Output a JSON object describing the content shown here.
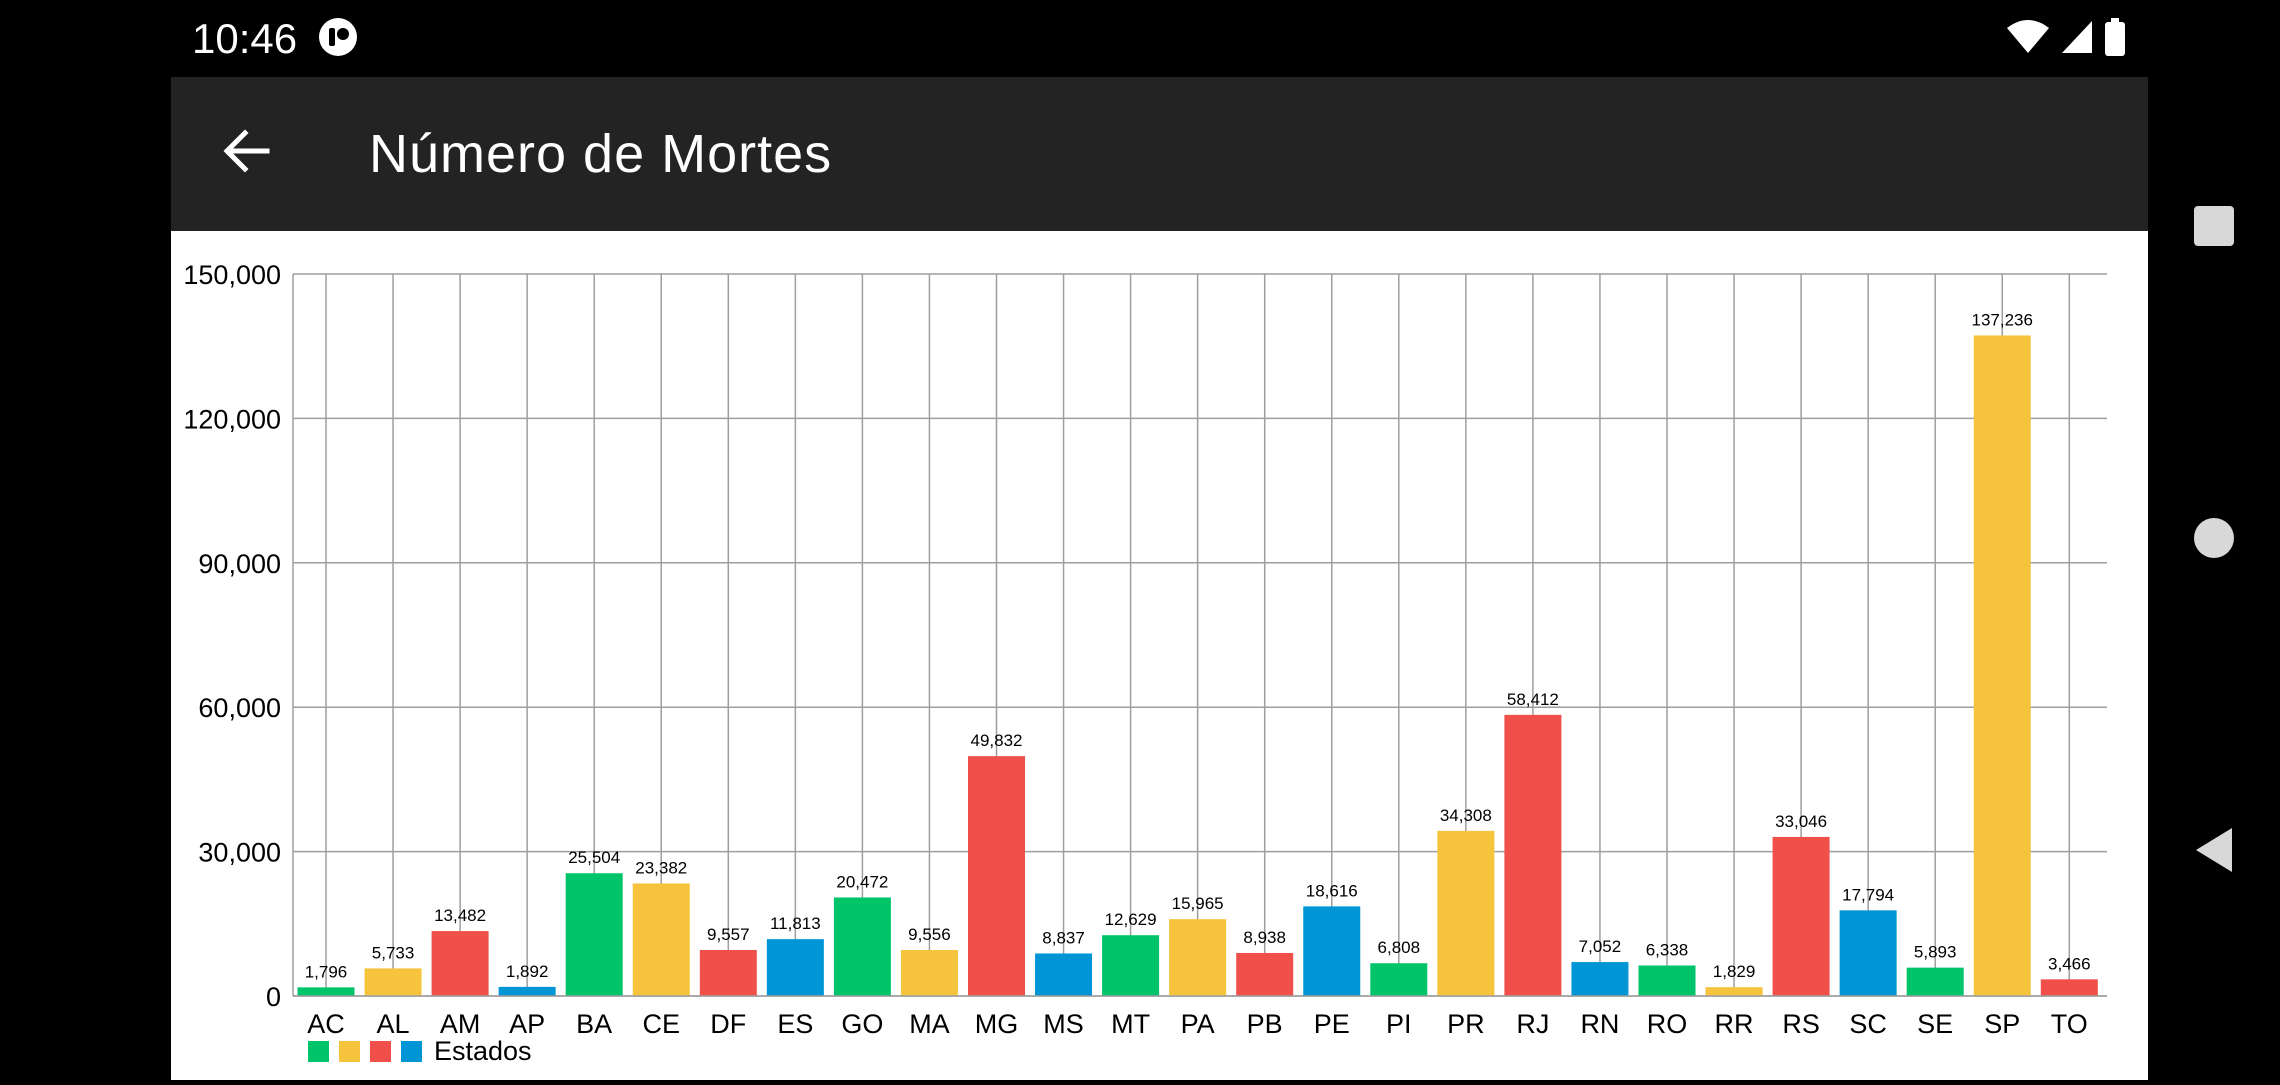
{
  "status_bar": {
    "time": "10:46"
  },
  "app_bar": {
    "title": "Número de Mortes"
  },
  "icons": {
    "back": "arrow-left-icon",
    "app": "app-indicator-icon",
    "wifi": "wifi-icon",
    "signal": "signal-icon",
    "battery": "battery-icon",
    "nav_recent": "square-icon",
    "nav_home": "circle-icon",
    "nav_back": "triangle-back-icon"
  },
  "colors": {
    "green": "#00c46a",
    "yellow": "#f5c33c",
    "red": "#f04f4a",
    "blue": "#0096d6"
  },
  "chart_data": {
    "type": "bar",
    "categories": [
      "AC",
      "AL",
      "AM",
      "AP",
      "BA",
      "CE",
      "DF",
      "ES",
      "GO",
      "MA",
      "MG",
      "MS",
      "MT",
      "PA",
      "PB",
      "PE",
      "PI",
      "PR",
      "RJ",
      "RN",
      "RO",
      "RR",
      "RS",
      "SC",
      "SE",
      "SP",
      "TO"
    ],
    "values": [
      1796,
      5733,
      13482,
      1892,
      25504,
      23382,
      9557,
      11813,
      20472,
      9556,
      49832,
      8837,
      12629,
      15965,
      8938,
      18616,
      6808,
      34308,
      58412,
      7052,
      6338,
      1829,
      33046,
      17794,
      5893,
      137236,
      3466
    ],
    "value_labels": [
      "1,796",
      "5,733",
      "13,482",
      "1,892",
      "25,504",
      "23,382",
      "9,557",
      "11,813",
      "20,472",
      "9,556",
      "49,832",
      "8,837",
      "12,629",
      "15,965",
      "8,938",
      "18,616",
      "6,808",
      "34,308",
      "58,412",
      "7,052",
      "6,338",
      "1,829",
      "33,046",
      "17,794",
      "5,893",
      "137,236",
      "3,466"
    ],
    "bar_colors": [
      "#00c46a",
      "#f5c33c",
      "#f04f4a",
      "#0096d6",
      "#00c46a",
      "#f5c33c",
      "#f04f4a",
      "#0096d6",
      "#00c46a",
      "#f5c33c",
      "#f04f4a",
      "#0096d6",
      "#00c46a",
      "#f5c33c",
      "#f04f4a",
      "#0096d6",
      "#00c46a",
      "#f5c33c",
      "#f04f4a",
      "#0096d6",
      "#00c46a",
      "#f5c33c",
      "#f04f4a",
      "#0096d6",
      "#00c46a",
      "#f5c33c",
      "#f04f4a"
    ],
    "ylim": [
      0,
      150000
    ],
    "yticks": [
      0,
      30000,
      60000,
      90000,
      120000,
      150000
    ],
    "ytick_labels": [
      "0",
      "30,000",
      "60,000",
      "90,000",
      "120,000",
      "150,000"
    ],
    "grid": true,
    "legend": {
      "label": "Estados",
      "colors": [
        "#00c46a",
        "#f5c33c",
        "#f04f4a",
        "#0096d6"
      ],
      "position": "bottom-left"
    },
    "title": "",
    "xlabel": "",
    "ylabel": ""
  }
}
